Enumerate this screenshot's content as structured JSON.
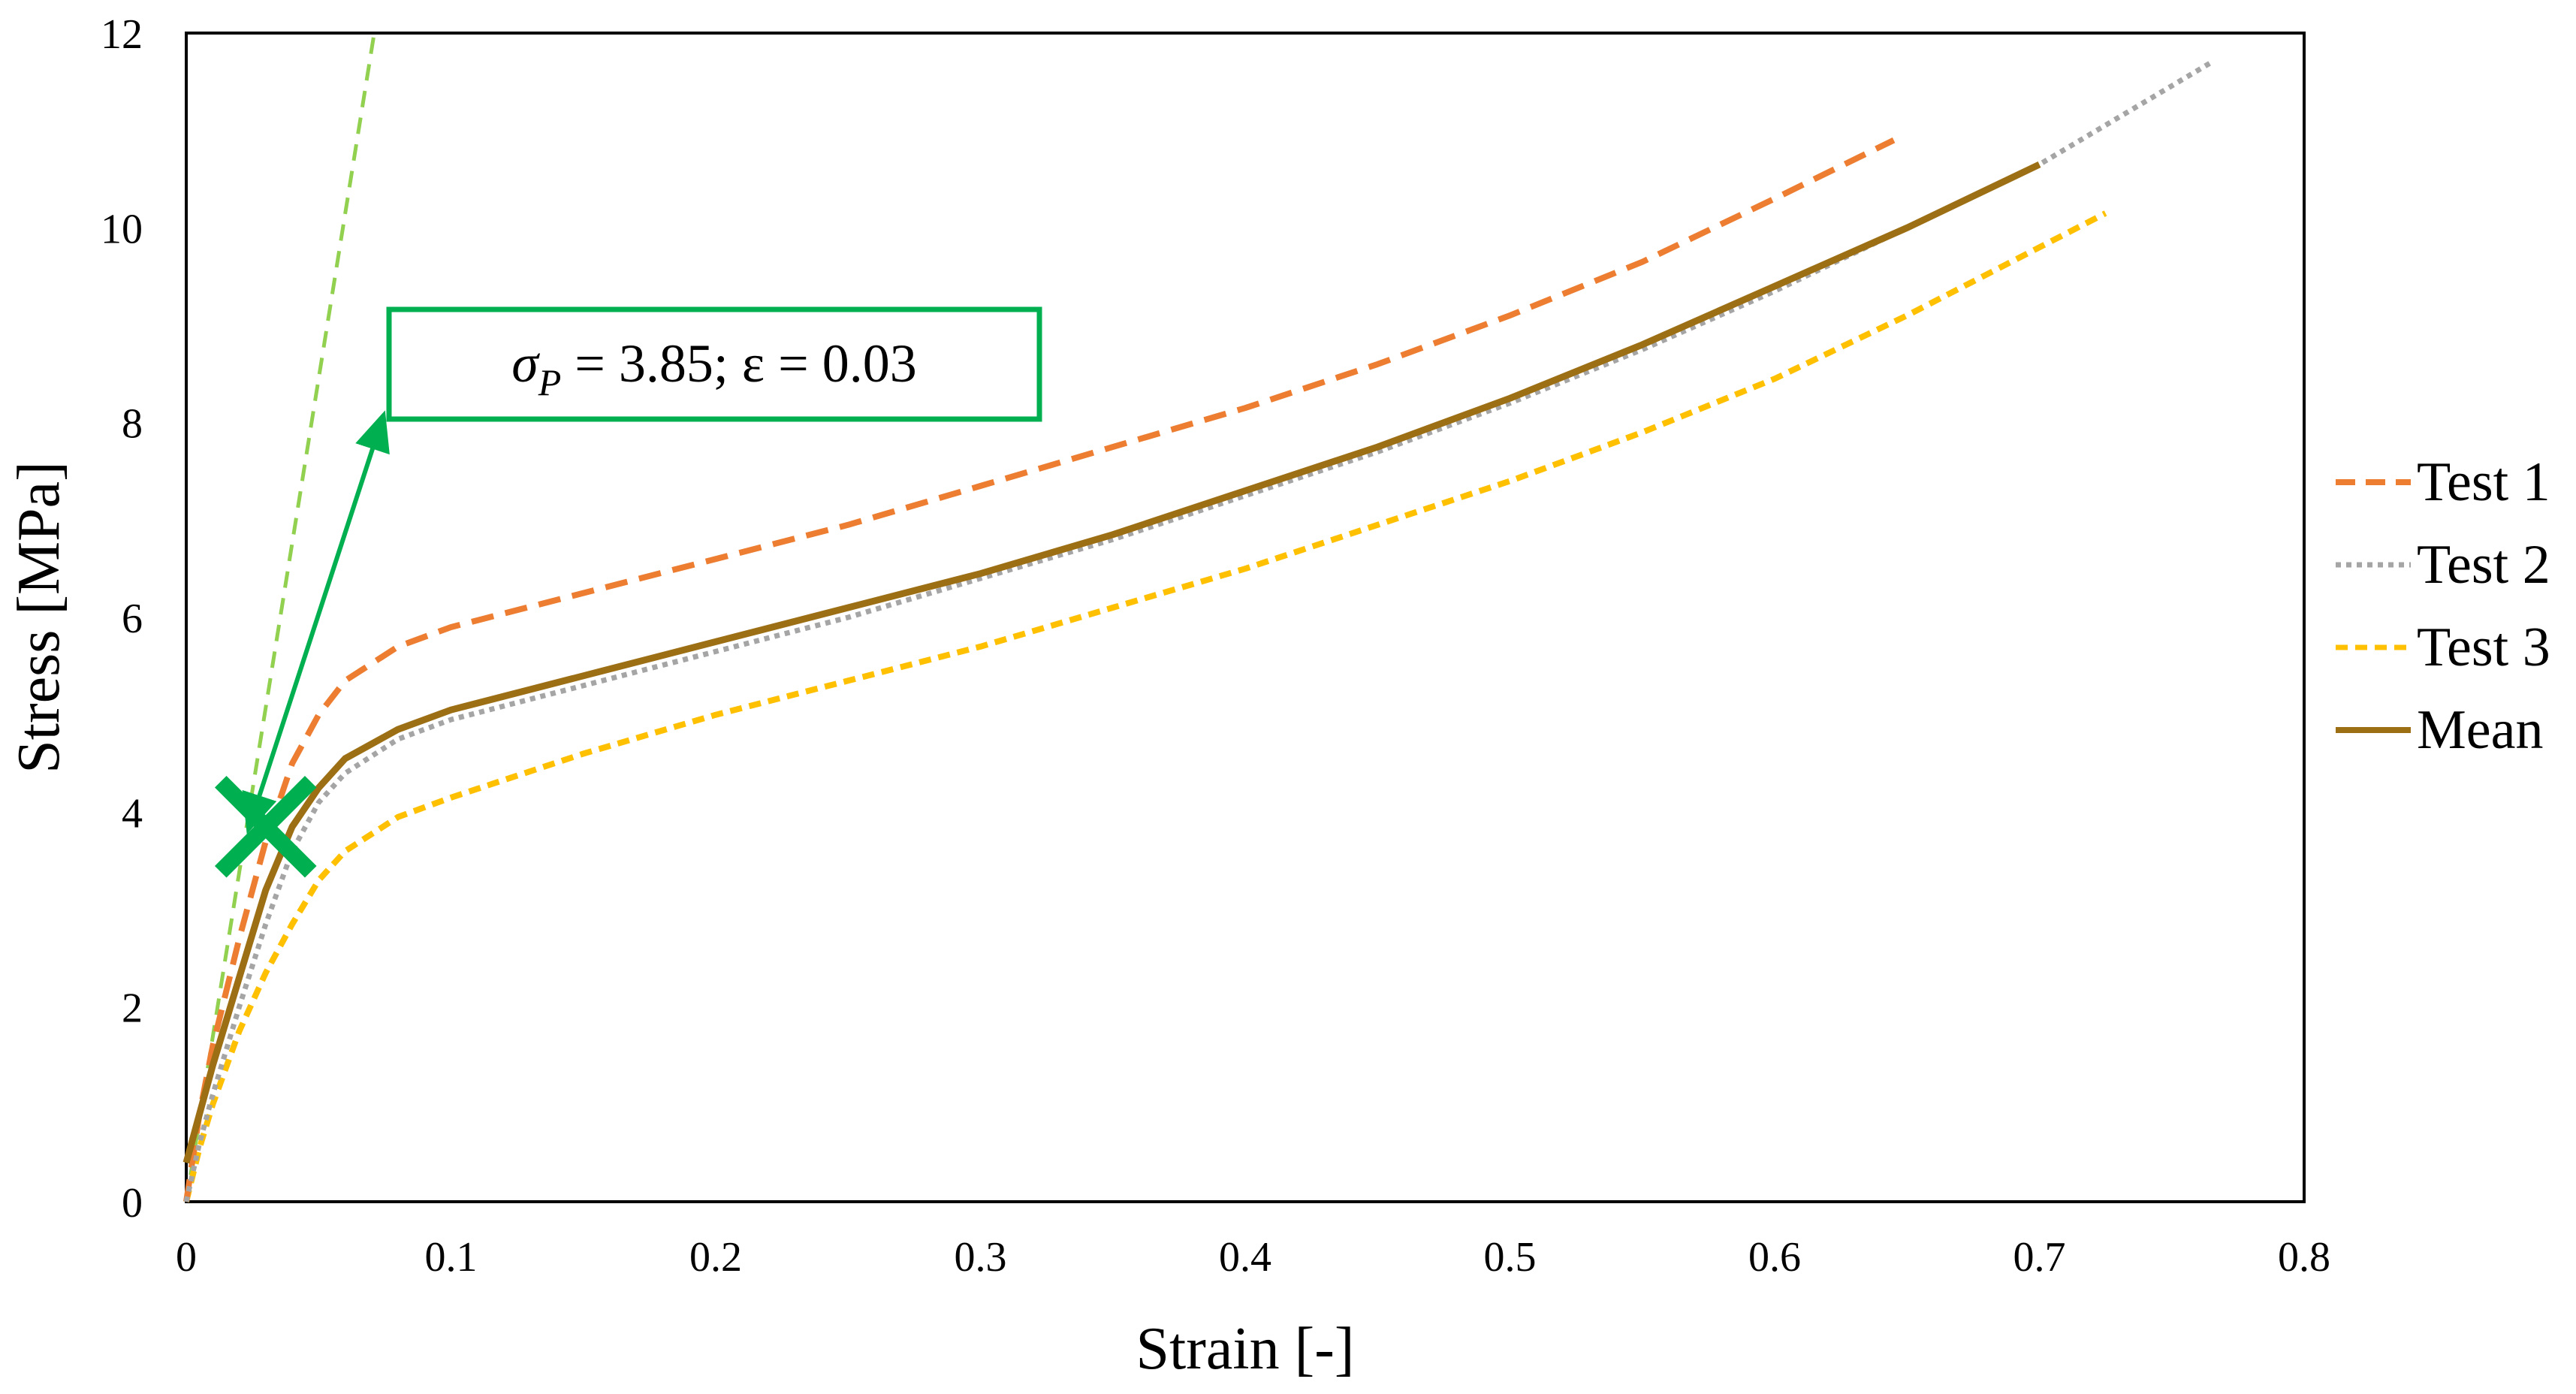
{
  "chart_data": {
    "type": "line",
    "title": "",
    "xlabel": "Strain [-]",
    "ylabel": "Stress [MPa]",
    "xlim": [
      0,
      0.8
    ],
    "ylim": [
      0,
      12
    ],
    "xticks": [
      0,
      0.1,
      0.2,
      0.3,
      0.4,
      0.5,
      0.6,
      0.7,
      0.8
    ],
    "xtick_labels": [
      "0",
      "0.1",
      "0.2",
      "0.3",
      "0.4",
      "0.5",
      "0.6",
      "0.7",
      "0.8"
    ],
    "yticks": [
      0,
      2,
      4,
      6,
      8,
      10,
      12
    ],
    "ytick_labels": [
      "0",
      "2",
      "4",
      "6",
      "8",
      "10",
      "12"
    ],
    "grid": false,
    "legend_position": "right",
    "series": [
      {
        "name": "Test 1",
        "color": "#ED7D31",
        "style": "dashed",
        "points": [
          [
            0,
            0
          ],
          [
            0.005,
            0.9
          ],
          [
            0.01,
            1.6
          ],
          [
            0.02,
            2.7
          ],
          [
            0.03,
            3.7
          ],
          [
            0.04,
            4.5
          ],
          [
            0.05,
            5.0
          ],
          [
            0.06,
            5.35
          ],
          [
            0.08,
            5.7
          ],
          [
            0.1,
            5.9
          ],
          [
            0.15,
            6.25
          ],
          [
            0.2,
            6.6
          ],
          [
            0.25,
            6.95
          ],
          [
            0.3,
            7.35
          ],
          [
            0.35,
            7.75
          ],
          [
            0.4,
            8.15
          ],
          [
            0.45,
            8.6
          ],
          [
            0.5,
            9.1
          ],
          [
            0.55,
            9.65
          ],
          [
            0.6,
            10.3
          ],
          [
            0.645,
            10.9
          ]
        ]
      },
      {
        "name": "Test 2",
        "color": "#A5A5A5",
        "style": "dotted",
        "points": [
          [
            0,
            0
          ],
          [
            0.005,
            0.6
          ],
          [
            0.01,
            1.1
          ],
          [
            0.02,
            2.0
          ],
          [
            0.03,
            2.85
          ],
          [
            0.04,
            3.6
          ],
          [
            0.05,
            4.1
          ],
          [
            0.06,
            4.4
          ],
          [
            0.08,
            4.75
          ],
          [
            0.1,
            4.95
          ],
          [
            0.15,
            5.3
          ],
          [
            0.2,
            5.65
          ],
          [
            0.25,
            6.0
          ],
          [
            0.3,
            6.4
          ],
          [
            0.35,
            6.8
          ],
          [
            0.4,
            7.25
          ],
          [
            0.45,
            7.7
          ],
          [
            0.5,
            8.2
          ],
          [
            0.55,
            8.75
          ],
          [
            0.6,
            9.35
          ],
          [
            0.65,
            10.0
          ],
          [
            0.7,
            10.65
          ],
          [
            0.765,
            11.7
          ]
        ]
      },
      {
        "name": "Test 3",
        "color": "#FFC000",
        "style": "dashed",
        "points": [
          [
            0,
            0
          ],
          [
            0.005,
            0.55
          ],
          [
            0.01,
            1.0
          ],
          [
            0.02,
            1.75
          ],
          [
            0.03,
            2.35
          ],
          [
            0.04,
            2.85
          ],
          [
            0.05,
            3.3
          ],
          [
            0.06,
            3.6
          ],
          [
            0.08,
            3.95
          ],
          [
            0.1,
            4.15
          ],
          [
            0.15,
            4.6
          ],
          [
            0.2,
            5.0
          ],
          [
            0.25,
            5.35
          ],
          [
            0.3,
            5.7
          ],
          [
            0.35,
            6.1
          ],
          [
            0.4,
            6.5
          ],
          [
            0.45,
            6.95
          ],
          [
            0.5,
            7.4
          ],
          [
            0.55,
            7.9
          ],
          [
            0.6,
            8.45
          ],
          [
            0.65,
            9.1
          ],
          [
            0.7,
            9.8
          ],
          [
            0.725,
            10.15
          ]
        ]
      },
      {
        "name": "Mean",
        "color": "#9C6F14",
        "style": "solid",
        "points": [
          [
            0,
            0.4
          ],
          [
            0.005,
            0.9
          ],
          [
            0.01,
            1.4
          ],
          [
            0.02,
            2.3
          ],
          [
            0.03,
            3.2
          ],
          [
            0.04,
            3.85
          ],
          [
            0.05,
            4.25
          ],
          [
            0.06,
            4.55
          ],
          [
            0.08,
            4.85
          ],
          [
            0.1,
            5.05
          ],
          [
            0.15,
            5.4
          ],
          [
            0.2,
            5.75
          ],
          [
            0.25,
            6.1
          ],
          [
            0.3,
            6.45
          ],
          [
            0.35,
            6.85
          ],
          [
            0.4,
            7.3
          ],
          [
            0.45,
            7.75
          ],
          [
            0.5,
            8.25
          ],
          [
            0.55,
            8.8
          ],
          [
            0.6,
            9.4
          ],
          [
            0.65,
            10.0
          ],
          [
            0.7,
            10.65
          ]
        ]
      }
    ],
    "elastic_line": {
      "color": "#92D050",
      "style": "dashed",
      "points": [
        [
          0,
          0
        ],
        [
          0.071,
          12
        ]
      ]
    },
    "marker": {
      "symbol": "x",
      "color": "#00B050",
      "x": 0.03,
      "y": 3.85
    },
    "annotation": {
      "text": "σP = 3.85; ε = 0.03",
      "sigma": "σ",
      "subscript": "P",
      "rest": " = 3.85; ε = 0.03",
      "color": "#00B050",
      "arrow_from": [
        0.073,
        7.95
      ],
      "arrow_to": [
        0.025,
        3.95
      ]
    }
  }
}
